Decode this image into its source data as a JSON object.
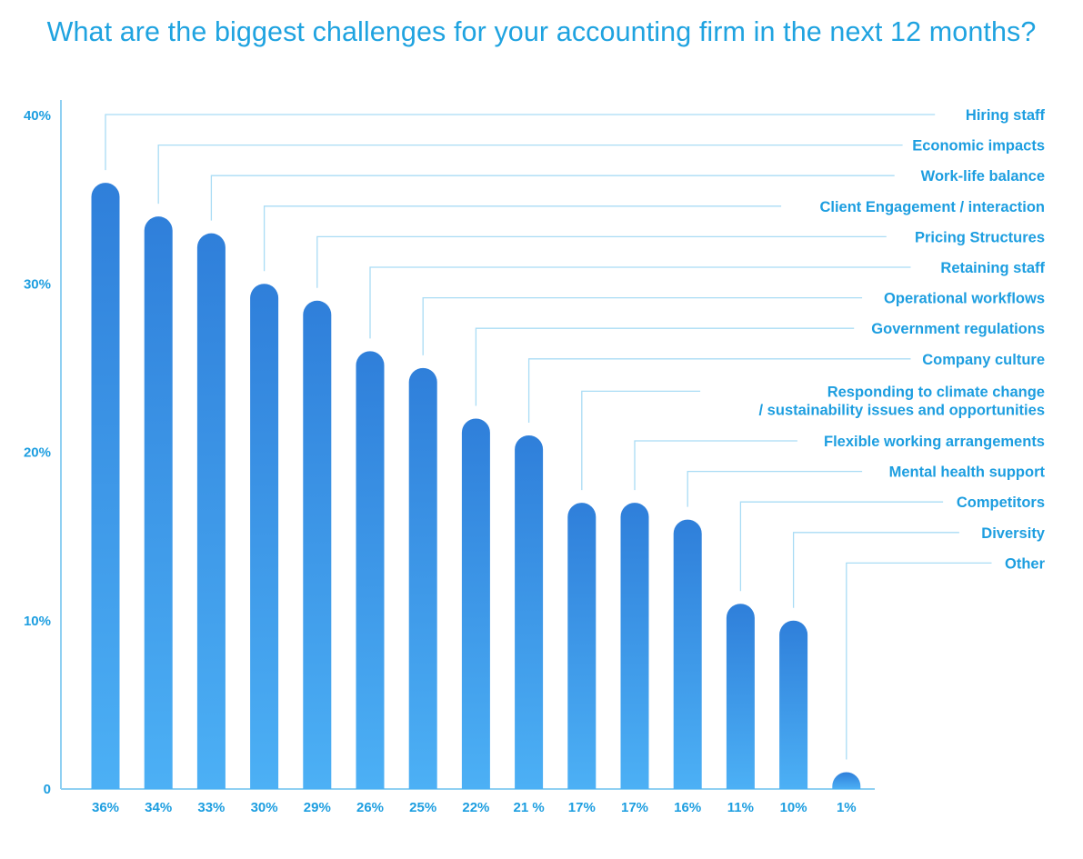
{
  "chart_data": {
    "type": "bar",
    "title": "What are the biggest challenges for your accounting firm in the next 12 months?",
    "xlabel": "",
    "ylabel": "",
    "ylim": [
      0,
      40
    ],
    "yticks": [
      0,
      10,
      20,
      30,
      40
    ],
    "ytick_labels": [
      "0",
      "10%",
      "20%",
      "30%",
      "40%"
    ],
    "grid": false,
    "legend": "none",
    "categories": [
      "Hiring staff",
      "Economic impacts",
      "Work-life balance",
      "Client Engagement / interaction",
      "Pricing Structures",
      "Retaining staff",
      "Operational workflows",
      "Government regulations",
      "Company culture",
      "Responding to climate change / sustainability issues and opportunities",
      "Flexible working arrangements",
      "Mental health support",
      "Competitors",
      "Diversity",
      "Other"
    ],
    "category_lines": [
      [
        "Hiring staff"
      ],
      [
        "Economic impacts"
      ],
      [
        "Work-life balance"
      ],
      [
        "Client Engagement / interaction"
      ],
      [
        "Pricing Structures"
      ],
      [
        "Retaining staff"
      ],
      [
        "Operational workflows"
      ],
      [
        "Government regulations"
      ],
      [
        "Company culture"
      ],
      [
        "Responding to climate change",
        "/ sustainability issues and opportunities"
      ],
      [
        "Flexible working arrangements"
      ],
      [
        "Mental health support"
      ],
      [
        "Competitors"
      ],
      [
        "Diversity"
      ],
      [
        "Other"
      ]
    ],
    "values": [
      36,
      34,
      33,
      30,
      29,
      26,
      25,
      22,
      21,
      17,
      17,
      16,
      11,
      10,
      1
    ],
    "value_labels": [
      "36%",
      "34%",
      "33%",
      "30%",
      "29%",
      "26%",
      "25%",
      "22%",
      "21 %",
      "17%",
      "17%",
      "16%",
      "11%",
      "10%",
      "1%"
    ]
  },
  "colors": {
    "title": "#1fa3e0",
    "text": "#1d9ee0",
    "bar_top": "#2f7fda",
    "bar_bottom": "#4cb0f5",
    "axis": "#8fd0f2",
    "leader": "#a9dcf5"
  }
}
